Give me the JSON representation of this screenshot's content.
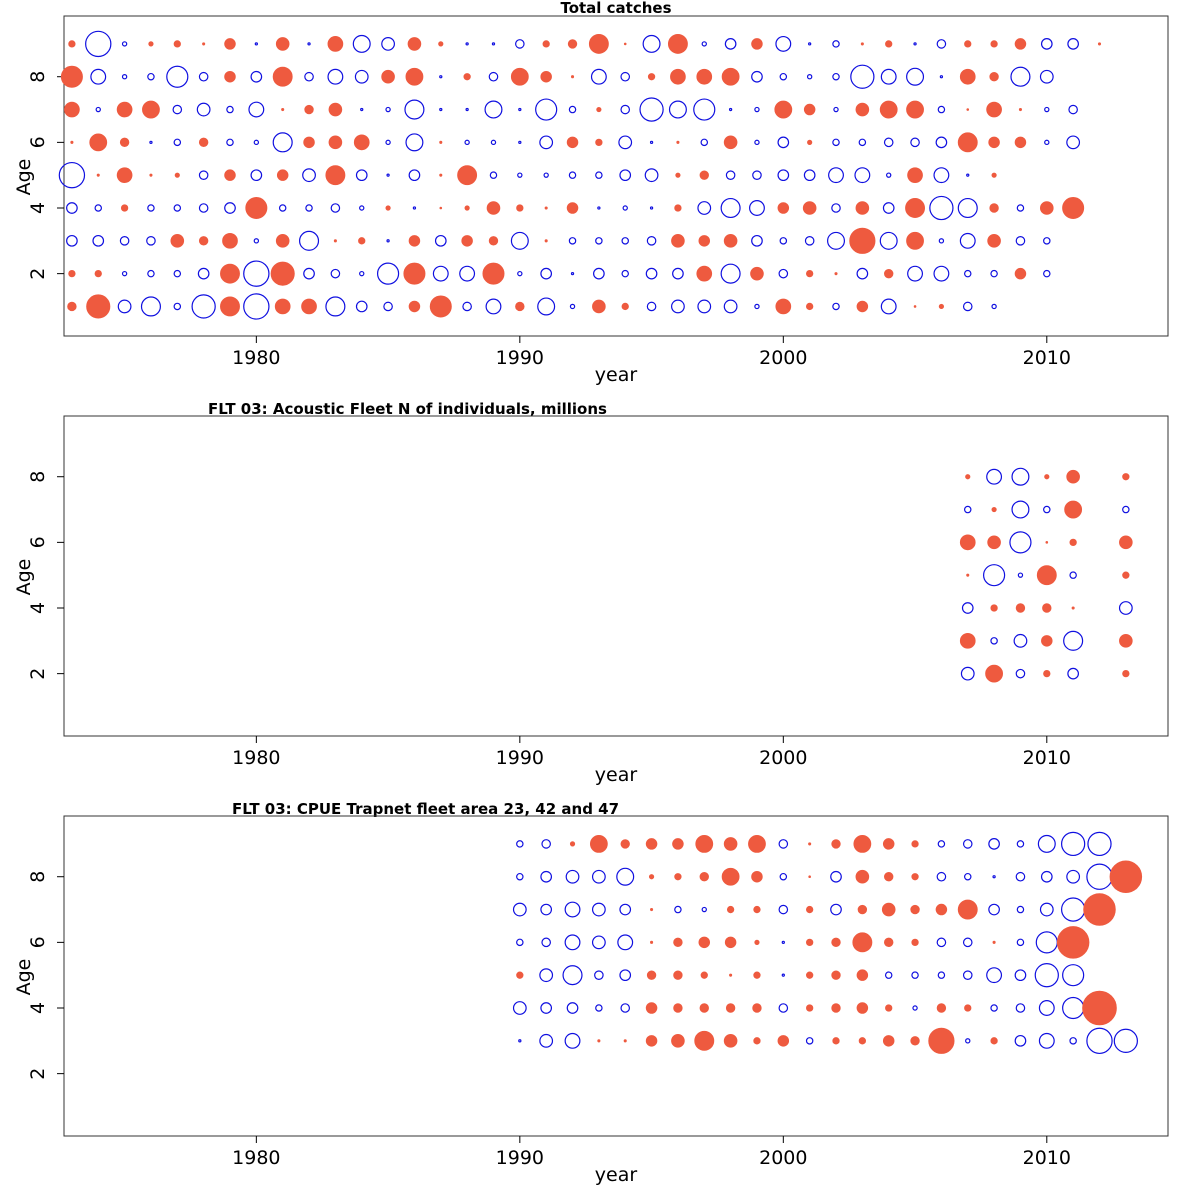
{
  "chart_data": [
    {
      "type": "scatter",
      "style": "bubble",
      "title": "Total catches",
      "xlabel": "year",
      "ylabel": "Age",
      "xlim": [
        1972.7,
        2014.6
      ],
      "ylim": [
        0.1,
        9.85
      ],
      "xticks": [
        1980,
        1990,
        2000,
        2010
      ],
      "yticks": [
        2,
        4,
        6,
        8
      ],
      "x_start": 1973,
      "x_end": 2013,
      "ages": [
        1,
        2,
        3,
        4,
        5,
        6,
        7,
        8,
        9
      ],
      "series": [
        {
          "name": "positive",
          "color": "#EE5A3F",
          "fill": "filled"
        },
        {
          "name": "negative",
          "color": "#1010E0",
          "fill": "open"
        }
      ],
      "rows": [
        {
          "age": 9,
          "values": "+3 -12 -2 +2 +3 +1 +5 -1 +6 -1 +7 -8 -6 +6 +2 -1 -1 -4 +3 +4 +9 0 -8 +9 -2 -5 +5 -7 -1 -3 +1 +3 -1 -4 +3 +3 +5 -5 -5 +1"
        },
        {
          "age": 8,
          "values": "+10 -7 -2 -3 -10 -4 +5 -5 +9 -4 -7 -6 +6 +8 -1 +3 -4 +8 +5 +1 -7 -4 +3 +7 +7 +8 -5 -3 -2 -3 -11 -7 -8 -1 +7 +4 -9 -6"
        },
        {
          "age": 7,
          "values": "+7 -2 +7 +8 -4 -6 -3 -7 +1 +4 +6 -1 -2 -9 -1 -1 -8 -1 -10 -3 +2 -4 -11 -8 -10 -1 -2 +8 +5 -2 +6 +8 +8 -3 0 +7 +1 -2 -4"
        },
        {
          "age": 6,
          "values": "+1 +8 +4 -1 -3 +4 -3 -2 -9 +5 +6 +7 -2 -8 +1 -2 -2 -1 -6 +5 +3 -6 -1 +1 -3 +6 -2 -5 +2 -3 -3 -4 -4 -5 +9 +5 +5 -2 -6"
        },
        {
          "age": 5,
          "values": "-12 +1 +7 +1 +2 -4 +5 -5 +5 -6 +9 -5 -1 -5 +1 +9 -3 -2 -2 -3 -3 -5 -6 +2 +4 -4 -4 -5 -5 -7 -7 -2 +7 -7 -1 +2"
        },
        {
          "age": 4,
          "values": "-5 -3 +3 -3 -3 -4 -5 +10 -3 -3 -4 -2 +2 -1 0 +2 +6 +3 +1 +5 -1 -2 -1 +3 -6 -9 -7 +5 +6 -4 +6 -5 +9 -11 -9 +4 -3 +6 +10"
        },
        {
          "age": 3,
          "values": "-5 -5 -4 -4 +6 +4 +7 -2 +6 -9 +1 +3 -1 +5 -5 +5 +4 -8 +1 -3 -3 -3 -4 +6 +5 +6 -5 -3 -4 -8 +12 -8 +8 -2 -7 +6 -4 -3"
        },
        {
          "age": 2,
          "values": "+3 +3 -2 -3 -3 -5 +9 -12 +11 -5 -4 -2 -10 +10 -7 -7 +10 -2 -5 -1 -5 -3 -5 -5 +7 -9 +6 -4 +3 +1 -5 +4 -7 -7 -3 -3 +5 -3"
        },
        {
          "age": 1,
          "values": "+4 +11 -6 -9 -3 -11 +9 -12 +7 +7 -9 -5 -4 +5 +10 -4 -7 +4 -8 -2 +6 +3 -4 -6 -6 -6 -2 +7 +3 -3 +5 -7 0 +2 -4 -2"
        }
      ]
    },
    {
      "type": "scatter",
      "style": "bubble",
      "title": "FLT 03: Acoustic Fleet   N of individuals, millions",
      "xlabel": "year",
      "ylabel": "Age",
      "xlim": [
        1972.7,
        2014.6
      ],
      "ylim": [
        0.1,
        9.85
      ],
      "xticks": [
        1980,
        1990,
        2000,
        2010
      ],
      "yticks": [
        2,
        4,
        6,
        8
      ],
      "x_start": 2007,
      "x_end": 2013,
      "ages": [
        2,
        3,
        4,
        5,
        6,
        7,
        8
      ],
      "series": [
        {
          "name": "positive",
          "color": "#EE5A3F",
          "fill": "filled"
        },
        {
          "name": "negative",
          "color": "#1010E0",
          "fill": "open"
        }
      ],
      "rows": [
        {
          "age": 8,
          "values": "+2 -7 -8 +2 +6 null +3"
        },
        {
          "age": 7,
          "values": "-3 +2 -8 -3 +8 null -3"
        },
        {
          "age": 6,
          "values": "+7 +6 -10 0 +3 null +6"
        },
        {
          "age": 5,
          "values": "+1 -10 -2 +9 -3 null +3"
        },
        {
          "age": 4,
          "values": "-5 +3 +4 +4 +1 null -6"
        },
        {
          "age": 3,
          "values": "+7 -3 -6 +5 -9 null +6"
        },
        {
          "age": 2,
          "values": "-6 +8 -4 +3 -5 null +3"
        }
      ]
    },
    {
      "type": "scatter",
      "style": "bubble",
      "title": "FLT 03: CPUE Trapnet fleet area 23, 42 and 47",
      "xlabel": "year",
      "ylabel": "Age",
      "xlim": [
        1972.7,
        2014.6
      ],
      "ylim": [
        0.1,
        9.85
      ],
      "xticks": [
        1980,
        1990,
        2000,
        2010
      ],
      "yticks": [
        2,
        4,
        6,
        8
      ],
      "x_start": 1990,
      "x_end": 2013,
      "ages": [
        3,
        4,
        5,
        6,
        7,
        8,
        9
      ],
      "series": [
        {
          "name": "positive",
          "color": "#EE5A3F",
          "fill": "filled"
        },
        {
          "name": "negative",
          "color": "#1010E0",
          "fill": "open"
        }
      ],
      "rows": [
        {
          "age": 9,
          "values": "-3 -4 +2 +8 +4 +5 +5 +8 +6 +8 -4 +1 +4 +8 +5 +3 -3 -4 -5 -3 -8 -11 -11"
        },
        {
          "age": 8,
          "values": "-3 -5 -6 -6 -8 +2 +3 +4 +8 +5 -3 0 -5 +6 +4 +3 -4 -3 -1 -4 -5 -6 -12 +15"
        },
        {
          "age": 7,
          "values": "-6 -5 -7 -6 -5 +1 -3 -2 +3 +3 -4 +3 -5 +4 +6 +4 +5 +9 -5 -3 -6 -11 +15"
        },
        {
          "age": 6,
          "values": "-3 -4 -7 -6 -7 +1 +4 +5 +5 +2 -1 +3 +4 +9 +4 +3 -4 -4 +1 -3 -10 +15"
        },
        {
          "age": 5,
          "values": "+3 -6 -9 -4 -5 +4 +4 +3 +1 +3 -1 +3 +4 +5 -3 -3 -3 -4 -7 -5 -11 -10"
        },
        {
          "age": 4,
          "values": "-6 -5 -5 -3 -4 +5 +4 +4 +4 +4 -4 +3 +4 +5 +3 -2 +4 +3 -3 -4 -7 -10 +16"
        },
        {
          "age": 3,
          "values": "-1 -6 -7 +1 +1 +5 +6 +9 +6 +3 +5 -3 +3 +3 +5 +4 +12 -2 +3 -5 -7 -3 -12 -11"
        }
      ]
    }
  ]
}
